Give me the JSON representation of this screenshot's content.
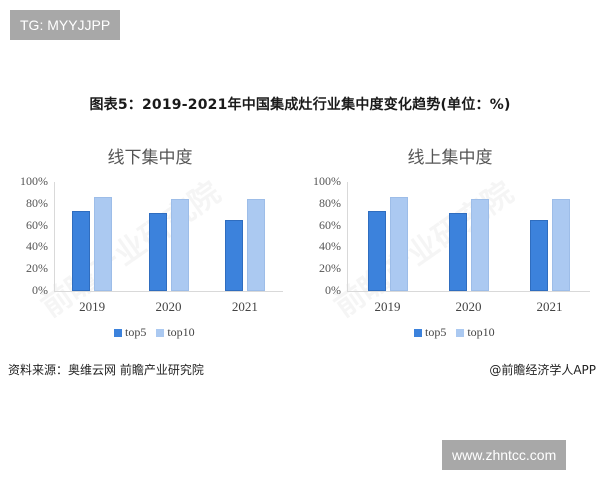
{
  "badges": {
    "top_left": "TG: MYYJJPP",
    "bottom_right": "www.zhntcc.com"
  },
  "figure": {
    "title": "图表5：2019-2021年中国集成灶行业集中度变化趋势(单位：%)",
    "source": "资料来源：奥维云网 前瞻产业研究院",
    "credit": "@前瞻经济学人APP",
    "watermark": "前瞻产业研究院"
  },
  "colors": {
    "top5": "#3c82dc",
    "top10": "#abc9f1"
  },
  "chart_data": [
    {
      "type": "bar",
      "title": "线下集中度",
      "categories": [
        "2019",
        "2020",
        "2021"
      ],
      "series": [
        {
          "name": "top5",
          "values": [
            73,
            72,
            65
          ]
        },
        {
          "name": "top10",
          "values": [
            86,
            84,
            84
          ]
        }
      ],
      "xlabel": "",
      "ylabel": "",
      "yticks": [
        "0%",
        "20%",
        "40%",
        "60%",
        "80%",
        "100%"
      ],
      "ylim": [
        0,
        100
      ],
      "grid": false,
      "legend_position": "bottom"
    },
    {
      "type": "bar",
      "title": "线上集中度",
      "categories": [
        "2019",
        "2020",
        "2021"
      ],
      "series": [
        {
          "name": "top5",
          "values": [
            73,
            72,
            65
          ]
        },
        {
          "name": "top10",
          "values": [
            86,
            84,
            84
          ]
        }
      ],
      "xlabel": "",
      "ylabel": "",
      "yticks": [
        "0%",
        "20%",
        "40%",
        "60%",
        "80%",
        "100%"
      ],
      "ylim": [
        0,
        100
      ],
      "grid": false,
      "legend_position": "bottom"
    }
  ]
}
